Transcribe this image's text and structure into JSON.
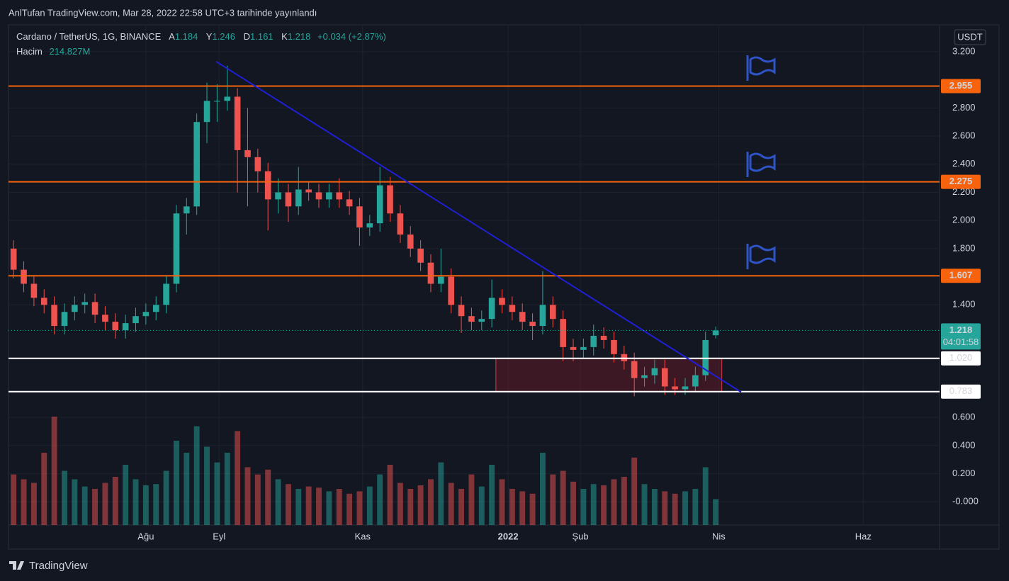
{
  "header": {
    "title": "AnlTufan TradingView.com, Mar 28, 2022 22:58 UTC+3 tarihinde yayınlandı",
    "brand": "TradingView"
  },
  "chart_data": {
    "type": "candlestick",
    "title": "Cardano / TetherUS, 1G, BINANCE",
    "legend": {
      "open_key": "A",
      "high_key": "Y",
      "low_key": "D",
      "close_key": "K",
      "change": "+0.034 (+2.87%)",
      "volume_key": "Hacim",
      "last_volume_label": "214.827M"
    },
    "currency": "USDT",
    "up_color": "#26a69a",
    "down_color": "#ef5350",
    "open": [
      1.8,
      1.65,
      1.55,
      1.45,
      1.4,
      1.25,
      1.35,
      1.4,
      1.42,
      1.33,
      1.28,
      1.22,
      1.27,
      1.32,
      1.35,
      1.4,
      1.55,
      2.05,
      2.1,
      2.7,
      2.85,
      2.85,
      2.88,
      2.5,
      2.45,
      2.35,
      2.15,
      2.2,
      2.1,
      2.22,
      2.2,
      2.15,
      2.2,
      2.15,
      2.1,
      1.95,
      1.98,
      2.25,
      2.05,
      1.9,
      1.8,
      1.7,
      1.55,
      1.6,
      1.4,
      1.32,
      1.28,
      1.3,
      1.45,
      1.4,
      1.35,
      1.28,
      1.25,
      1.4,
      1.3,
      1.1,
      1.08,
      1.1,
      1.18,
      1.15,
      1.05,
      1.0,
      0.88,
      0.9,
      0.95,
      0.82,
      0.8,
      0.82,
      0.9,
      1.184
    ],
    "high": [
      1.86,
      1.71,
      1.61,
      1.51,
      1.46,
      1.41,
      1.46,
      1.48,
      1.48,
      1.39,
      1.34,
      1.33,
      1.38,
      1.41,
      1.46,
      1.61,
      2.11,
      2.16,
      2.76,
      2.98,
      2.97,
      3.1,
      2.94,
      2.8,
      2.51,
      2.41,
      2.3,
      2.26,
      2.38,
      2.28,
      2.26,
      2.26,
      2.3,
      2.21,
      2.16,
      2.04,
      2.38,
      2.31,
      2.11,
      1.96,
      1.86,
      1.76,
      1.8,
      1.66,
      1.46,
      1.38,
      1.36,
      1.58,
      1.51,
      1.46,
      1.41,
      1.34,
      1.64,
      1.46,
      1.36,
      1.16,
      1.16,
      1.26,
      1.24,
      1.21,
      1.11,
      1.06,
      0.96,
      1.01,
      1.01,
      0.88,
      0.88,
      0.96,
      1.21,
      1.246
    ],
    "low": [
      1.59,
      1.49,
      1.39,
      1.34,
      1.19,
      1.19,
      1.29,
      1.34,
      1.27,
      1.22,
      1.16,
      1.16,
      1.21,
      1.26,
      1.29,
      1.34,
      1.49,
      1.9,
      2.04,
      2.55,
      2.7,
      2.78,
      2.2,
      2.1,
      2.2,
      1.93,
      2.05,
      1.99,
      2.04,
      2.14,
      2.09,
      2.09,
      2.09,
      2.04,
      1.82,
      1.89,
      1.92,
      1.99,
      1.84,
      1.74,
      1.64,
      1.49,
      1.49,
      1.34,
      1.2,
      1.22,
      1.22,
      1.24,
      1.34,
      1.29,
      1.22,
      1.15,
      1.19,
      1.24,
      1.0,
      1.0,
      1.02,
      1.04,
      1.09,
      0.99,
      0.94,
      0.75,
      0.82,
      0.84,
      0.76,
      0.76,
      0.76,
      0.78,
      0.86,
      1.161
    ],
    "close": [
      1.65,
      1.55,
      1.45,
      1.4,
      1.25,
      1.35,
      1.4,
      1.42,
      1.33,
      1.28,
      1.22,
      1.27,
      1.32,
      1.35,
      1.4,
      1.55,
      2.05,
      2.1,
      2.7,
      2.85,
      2.85,
      2.88,
      2.5,
      2.45,
      2.35,
      2.15,
      2.2,
      2.1,
      2.22,
      2.2,
      2.15,
      2.2,
      2.15,
      2.1,
      1.95,
      1.98,
      2.25,
      2.05,
      1.9,
      1.8,
      1.7,
      1.55,
      1.6,
      1.4,
      1.32,
      1.28,
      1.3,
      1.45,
      1.4,
      1.35,
      1.28,
      1.25,
      1.4,
      1.3,
      1.1,
      1.08,
      1.1,
      1.18,
      1.15,
      1.05,
      1.0,
      0.88,
      0.9,
      0.95,
      0.82,
      0.8,
      0.82,
      0.9,
      1.15,
      1.218
    ],
    "volume": [
      420,
      380,
      350,
      600,
      900,
      450,
      380,
      320,
      300,
      350,
      400,
      500,
      380,
      330,
      340,
      450,
      700,
      600,
      820,
      650,
      520,
      600,
      780,
      480,
      420,
      460,
      380,
      340,
      300,
      320,
      310,
      280,
      300,
      260,
      280,
      320,
      420,
      500,
      350,
      300,
      330,
      380,
      520,
      350,
      300,
      420,
      320,
      500,
      380,
      300,
      280,
      260,
      600,
      420,
      450,
      360,
      300,
      340,
      330,
      380,
      400,
      560,
      340,
      300,
      280,
      260,
      280,
      300,
      480,
      214.827
    ],
    "volume_lim": [
      0,
      1000
    ],
    "xlim": [
      -0.5,
      91
    ],
    "xticks": [
      {
        "value": 13,
        "label": "Ağu"
      },
      {
        "value": 20.2,
        "label": "Eyl"
      },
      {
        "value": 34.3,
        "label": "Kas"
      },
      {
        "value": 48.6,
        "label": "2022"
      },
      {
        "value": 55.7,
        "label": "Şub"
      },
      {
        "value": 69.3,
        "label": "Nis"
      },
      {
        "value": 83.5,
        "label": "Haz"
      }
    ],
    "ylim": [
      -0.165,
      3.391
    ],
    "yticks": [
      {
        "value": 3.2,
        "label": "3.200"
      },
      {
        "value": 2.8,
        "label": "2.800"
      },
      {
        "value": 2.6,
        "label": "2.600"
      },
      {
        "value": 2.4,
        "label": "2.400"
      },
      {
        "value": 2.2,
        "label": "2.200"
      },
      {
        "value": 2.0,
        "label": "2.000"
      },
      {
        "value": 1.8,
        "label": "1.800"
      },
      {
        "value": 1.4,
        "label": "1.400"
      },
      {
        "value": 0.6,
        "label": "0.600"
      },
      {
        "value": 0.4,
        "label": "0.400"
      },
      {
        "value": 0.2,
        "label": "0.200"
      },
      {
        "value": 0,
        "label": "-0.000"
      }
    ],
    "grid": true,
    "levels": [
      {
        "value": 2.955,
        "label": "2.955",
        "color": "#f7630c"
      },
      {
        "value": 2.275,
        "label": "2.275",
        "color": "#f7630c"
      },
      {
        "value": 1.607,
        "label": "1.607",
        "color": "#f7630c"
      },
      {
        "value": 1.02,
        "label": "1.020",
        "color": "#ffffff"
      },
      {
        "value": 0.783,
        "label": "0.783",
        "color": "#ffffff"
      }
    ],
    "last_price": {
      "value": 1.218,
      "label": "1.218",
      "countdown": "04:01:58",
      "color": "#26a69a"
    },
    "trendline": {
      "x": [
        19.9,
        71.5
      ],
      "y": [
        3.13,
        0.78
      ],
      "color": "#1f1fd6"
    },
    "zone": {
      "x": [
        47.4,
        69.6
      ],
      "y": [
        0.783,
        1.02
      ],
      "color": "#9a1b2c"
    }
  }
}
